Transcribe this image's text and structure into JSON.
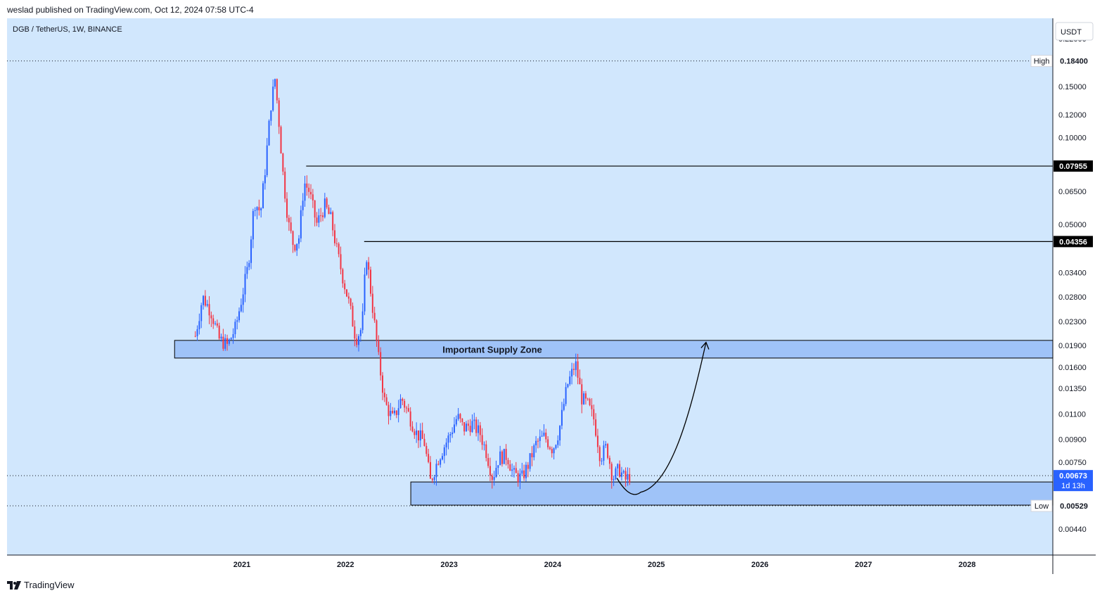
{
  "publish_info": "weslad published on TradingView.com, Oct 12, 2024 07:58 UTC-4",
  "symbol_legend": "DGB / TetherUS, 1W, BINANCE",
  "currency_label": "USDT",
  "footer_brand": "TradingView",
  "colors": {
    "background": "#d1e7fd",
    "up_candle": "#2962ff",
    "down_candle": "#f23645",
    "zone_fill": "#9fc3f8",
    "axis_text": "#131722",
    "price_tag_dark": "#000000",
    "last_price_tag": "#2962ff"
  },
  "chart_data": {
    "type": "candlestick",
    "y_scale": "log",
    "y_range": [
      0.0038,
      0.25
    ],
    "x_axis_ticks": [
      "2021",
      "2022",
      "2023",
      "2024",
      "2025",
      "2026",
      "2027",
      "2028"
    ],
    "y_axis_ticks": [
      "0.22000",
      "0.15000",
      "0.12000",
      "0.10000",
      "0.06500",
      "0.05000",
      "0.03400",
      "0.02800",
      "0.02300",
      "0.01900",
      "0.01600",
      "0.01350",
      "0.01100",
      "0.00900",
      "0.00750",
      "0.00440"
    ],
    "high": {
      "label": "High",
      "value": "0.18400"
    },
    "low": {
      "label": "Low",
      "value": "0.00529"
    },
    "last_price": {
      "value": "0.00673",
      "countdown": "1d 13h"
    },
    "resistance_levels": [
      {
        "value": "0.07955",
        "from": "2021.62"
      },
      {
        "value": "0.04356",
        "from": "2022.18"
      }
    ],
    "zones": [
      {
        "label": "Important Supply Zone",
        "from": "2020.35",
        "low": 0.0172,
        "high": 0.0198
      },
      {
        "label": "",
        "from": "2022.63",
        "low": 0.00532,
        "high": 0.0064
      }
    ],
    "projection_arrow": {
      "from_date": "2024.62",
      "from_price": 0.0066,
      "bottom_date": "2024.85",
      "bottom_price": 0.0059,
      "to_date": "2025.48",
      "to_price": 0.0195
    },
    "weekly_closes": [
      {
        "date": "2020.55",
        "close": 0.0205
      },
      {
        "date": "2020.62",
        "close": 0.028
      },
      {
        "date": "2020.7",
        "close": 0.025
      },
      {
        "date": "2020.78",
        "close": 0.02
      },
      {
        "date": "2020.86",
        "close": 0.019
      },
      {
        "date": "2020.94",
        "close": 0.022
      },
      {
        "date": "2021.0",
        "close": 0.028
      },
      {
        "date": "2021.06",
        "close": 0.036
      },
      {
        "date": "2021.12",
        "close": 0.06
      },
      {
        "date": "2021.18",
        "close": 0.055
      },
      {
        "date": "2021.22",
        "close": 0.075
      },
      {
        "date": "2021.28",
        "close": 0.13
      },
      {
        "date": "2021.32",
        "close": 0.16
      },
      {
        "date": "2021.36",
        "close": 0.11
      },
      {
        "date": "2021.4",
        "close": 0.072
      },
      {
        "date": "2021.45",
        "close": 0.05
      },
      {
        "date": "2021.5",
        "close": 0.042
      },
      {
        "date": "2021.55",
        "close": 0.045
      },
      {
        "date": "2021.6",
        "close": 0.07
      },
      {
        "date": "2021.65",
        "close": 0.065
      },
      {
        "date": "2021.72",
        "close": 0.05
      },
      {
        "date": "2021.8",
        "close": 0.058
      },
      {
        "date": "2021.86",
        "close": 0.052
      },
      {
        "date": "2021.92",
        "close": 0.04
      },
      {
        "date": "2021.98",
        "close": 0.032
      },
      {
        "date": "2022.04",
        "close": 0.026
      },
      {
        "date": "2022.1",
        "close": 0.02
      },
      {
        "date": "2022.16",
        "close": 0.022
      },
      {
        "date": "2022.2",
        "close": 0.04
      },
      {
        "date": "2022.26",
        "close": 0.026
      },
      {
        "date": "2022.32",
        "close": 0.017
      },
      {
        "date": "2022.38",
        "close": 0.012
      },
      {
        "date": "2022.46",
        "close": 0.0105
      },
      {
        "date": "2022.54",
        "close": 0.0125
      },
      {
        "date": "2022.6",
        "close": 0.0112
      },
      {
        "date": "2022.68",
        "close": 0.0095
      },
      {
        "date": "2022.76",
        "close": 0.0088
      },
      {
        "date": "2022.82",
        "close": 0.0064
      },
      {
        "date": "2022.9",
        "close": 0.0078
      },
      {
        "date": "2023.0",
        "close": 0.0092
      },
      {
        "date": "2023.08",
        "close": 0.0108
      },
      {
        "date": "2023.14",
        "close": 0.0098
      },
      {
        "date": "2023.22",
        "close": 0.0102
      },
      {
        "date": "2023.3",
        "close": 0.0094
      },
      {
        "date": "2023.36",
        "close": 0.0081
      },
      {
        "date": "2023.42",
        "close": 0.0066
      },
      {
        "date": "2023.48",
        "close": 0.0078
      },
      {
        "date": "2023.56",
        "close": 0.0079
      },
      {
        "date": "2023.62",
        "close": 0.0068
      },
      {
        "date": "2023.7",
        "close": 0.0066
      },
      {
        "date": "2023.76",
        "close": 0.0073
      },
      {
        "date": "2023.84",
        "close": 0.0087
      },
      {
        "date": "2023.92",
        "close": 0.0092
      },
      {
        "date": "2024.0",
        "close": 0.0083
      },
      {
        "date": "2024.06",
        "close": 0.0096
      },
      {
        "date": "2024.14",
        "close": 0.0138
      },
      {
        "date": "2024.22",
        "close": 0.0165
      },
      {
        "date": "2024.28",
        "close": 0.0125
      },
      {
        "date": "2024.34",
        "close": 0.0118
      },
      {
        "date": "2024.4",
        "close": 0.0105
      },
      {
        "date": "2024.46",
        "close": 0.0078
      },
      {
        "date": "2024.52",
        "close": 0.0085
      },
      {
        "date": "2024.58",
        "close": 0.0066
      },
      {
        "date": "2024.64",
        "close": 0.0071
      },
      {
        "date": "2024.7",
        "close": 0.0065
      },
      {
        "date": "2024.75",
        "close": 0.00673
      }
    ]
  }
}
